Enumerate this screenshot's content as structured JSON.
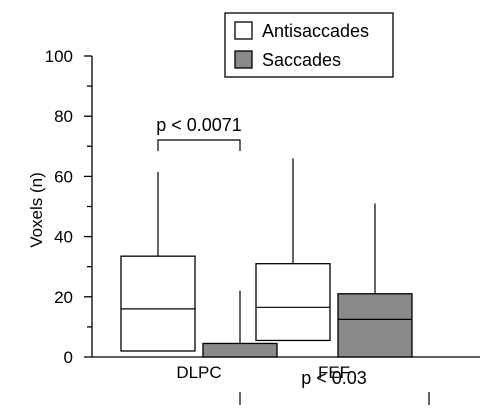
{
  "chart_data": {
    "type": "boxplot",
    "ylabel": "Voxels (n)",
    "ylim": [
      0,
      100
    ],
    "y_ticks": [
      0,
      20,
      40,
      60,
      80,
      100
    ],
    "grid": false,
    "legend_placement": "top",
    "categories": [
      "DLPC",
      "FEF"
    ],
    "series": [
      {
        "name": "Antisaccades",
        "color": "#ffffff",
        "boxes": [
          {
            "category": "DLPC",
            "min": 0,
            "q1": 2,
            "median": 16,
            "q3": 33.5,
            "max": 61.5
          },
          {
            "category": "FEF",
            "min": 0,
            "q1": 5.5,
            "median": 16.5,
            "q3": 31,
            "max": 66
          }
        ]
      },
      {
        "name": "Saccades",
        "color": "#8a8a8a",
        "boxes": [
          {
            "category": "DLPC",
            "min": 0,
            "q1": 0,
            "median": 0,
            "q3": 4.5,
            "max": 22
          },
          {
            "category": "FEF",
            "min": 0,
            "q1": 0,
            "median": 12.5,
            "q3": 21,
            "max": 51
          }
        ]
      }
    ],
    "annotations": [
      {
        "text": "p < 0.0071",
        "between": [
          "Antisaccades DLPC",
          "Saccades DLPC"
        ]
      },
      {
        "text": "p < 0.03",
        "between": [
          "DLPC",
          "FEF"
        ]
      }
    ]
  }
}
